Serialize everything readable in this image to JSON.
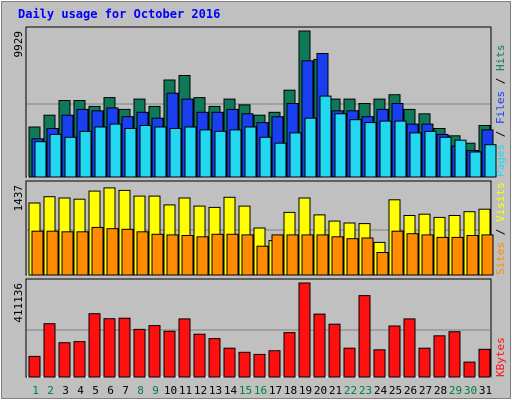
{
  "chart_data": {
    "type": "bar",
    "title": "Daily usage for October 2016",
    "categories": [
      "1",
      "2",
      "3",
      "4",
      "5",
      "6",
      "7",
      "8",
      "9",
      "10",
      "11",
      "12",
      "13",
      "14",
      "15",
      "16",
      "17",
      "18",
      "19",
      "20",
      "21",
      "22",
      "23",
      "24",
      "25",
      "26",
      "27",
      "28",
      "29",
      "30",
      "31"
    ],
    "weekend_days": [
      "1",
      "2",
      "8",
      "9",
      "15",
      "16",
      "22",
      "23",
      "29",
      "30"
    ],
    "panels": [
      {
        "id": "hits",
        "ymax_label": "9929",
        "ymax": 9929,
        "right_label": {
          "parts": [
            "Pages",
            "Files",
            "Hits"
          ],
          "separator": " / "
        },
        "series": [
          {
            "name": "Hits",
            "color": "#0f7a5a",
            "values": [
              3400,
              4200,
              5200,
              5200,
              4800,
              5400,
              4600,
              5300,
              4800,
              6600,
              6900,
              5400,
              4800,
              5300,
              4900,
              4200,
              4400,
              5900,
              9929,
              8000,
              5300,
              5300,
              5000,
              5300,
              5600,
              4600,
              4300,
              3300,
              2800,
              2300,
              3500
            ]
          },
          {
            "name": "Files",
            "color": "#1a3ff0",
            "values": [
              2600,
              3300,
              4200,
              4600,
              4500,
              4700,
              4100,
              4400,
              4000,
              5700,
              5300,
              4400,
              4400,
              4600,
              4300,
              3700,
              4100,
              5000,
              7900,
              8400,
              4500,
              4500,
              4100,
              4600,
              5000,
              3600,
              3600,
              2900,
              2100,
              1800,
              3200
            ]
          },
          {
            "name": "Pages",
            "color": "#22d8f0",
            "values": [
              2400,
              2900,
              2700,
              3100,
              3400,
              3600,
              3300,
              3500,
              3400,
              3300,
              3400,
              3200,
              3100,
              3200,
              3400,
              2700,
              2300,
              3000,
              4000,
              5500,
              4300,
              3900,
              3700,
              3800,
              3800,
              3000,
              3100,
              2700,
              2500,
              1700,
              2200
            ]
          }
        ]
      },
      {
        "id": "visits",
        "ymax_label": "1437",
        "ymax": 1437,
        "right_label": {
          "parts": [
            "Sites",
            "Visits"
          ],
          "separator": " / "
        },
        "series": [
          {
            "name": "Visits",
            "color": "#ffff00",
            "values": [
              1150,
              1250,
              1230,
              1210,
              1340,
              1390,
              1350,
              1260,
              1260,
              1120,
              1230,
              1100,
              1080,
              1240,
              1100,
              750,
              550,
              1000,
              1230,
              960,
              860,
              830,
              820,
              520,
              1200,
              950,
              970,
              920,
              950,
              1010,
              1050
            ]
          },
          {
            "name": "Sites",
            "color": "#ff8c00",
            "values": [
              700,
              700,
              690,
              690,
              760,
              740,
              730,
              690,
              650,
              640,
              630,
              610,
              650,
              650,
              640,
              460,
              640,
              640,
              640,
              640,
              610,
              580,
              590,
              360,
              700,
              660,
              640,
              600,
              600,
              630,
              640
            ]
          }
        ]
      },
      {
        "id": "kbytes",
        "ymax_label": "411136",
        "ymax": 411136,
        "right_label": {
          "parts": [
            "KBytes"
          ],
          "separator": ""
        },
        "series": [
          {
            "name": "KBytes",
            "color": "#ff1010",
            "values": [
              90000,
              233000,
              150000,
              155000,
              277000,
              255000,
              257000,
              208000,
              225000,
              200000,
              254000,
              187000,
              168000,
              126000,
              108000,
              99000,
              115000,
              194000,
              411136,
              275000,
              231000,
              126000,
              356000,
              119000,
              223000,
              254000,
              126000,
              180000,
              198000,
              65000,
              121000
            ]
          }
        ]
      }
    ],
    "colors": {
      "background": "#c0c0c0",
      "border": "#000000",
      "title": "#0000ff",
      "weekday": "#000000",
      "weekend": "#007f3f"
    }
  }
}
